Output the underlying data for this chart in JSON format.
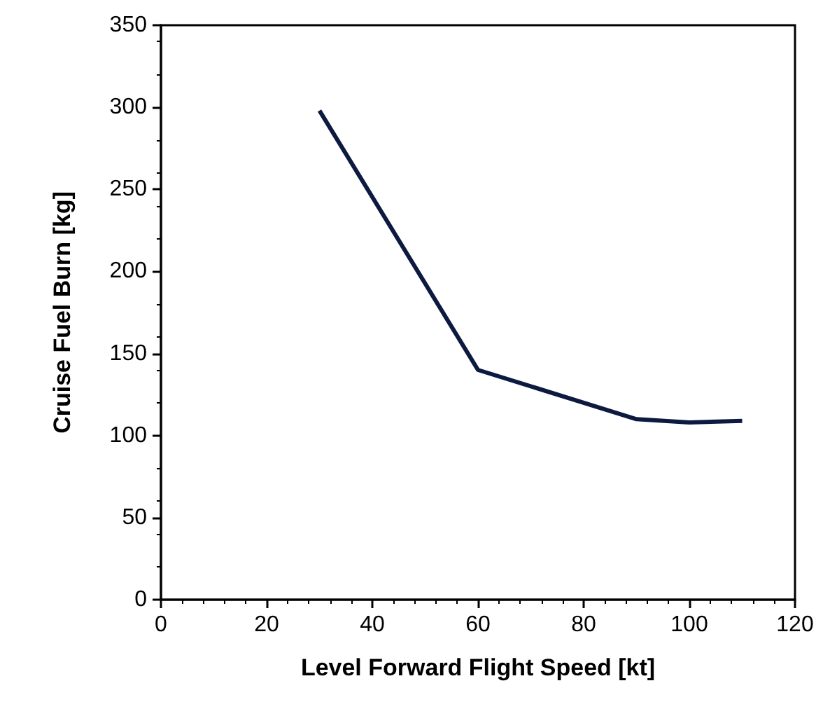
{
  "chart_data": {
    "type": "line",
    "xlabel": "Level Forward Flight Speed [kt]",
    "ylabel": "Cruise Fuel Burn [kg]",
    "x": [
      30,
      60,
      90,
      100,
      110
    ],
    "series": [
      {
        "color": "#0d1a40",
        "values": [
          298,
          140,
          110,
          108,
          109
        ]
      }
    ],
    "xlim": [
      0,
      120
    ],
    "xticks": [
      0,
      20,
      40,
      60,
      80,
      100,
      120
    ],
    "ylim": [
      0,
      350
    ],
    "yticks": [
      0,
      50,
      100,
      150,
      200,
      250,
      300,
      350
    ],
    "grid": false,
    "marker": "none",
    "line_style": "solid"
  }
}
